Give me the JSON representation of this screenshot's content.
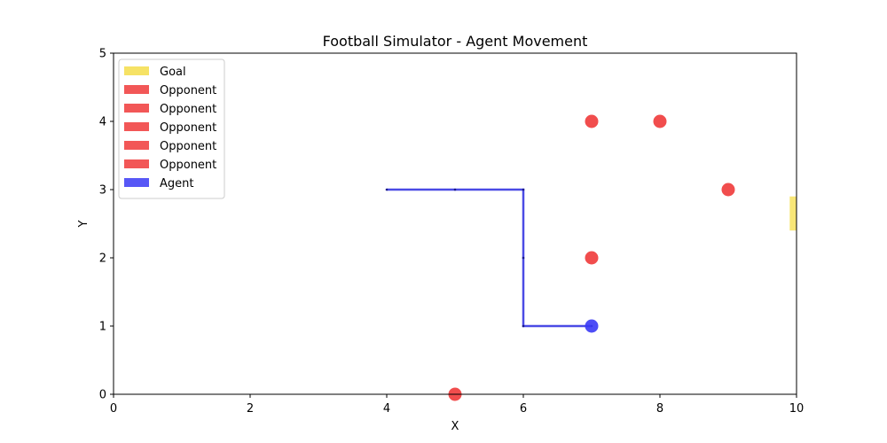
{
  "chart_data": {
    "type": "scatter",
    "title": "Football Simulator - Agent Movement",
    "xlabel": "X",
    "ylabel": "Y",
    "xlim": [
      0,
      10
    ],
    "ylim": [
      0,
      5
    ],
    "xticks": [
      0,
      2,
      4,
      6,
      8,
      10
    ],
    "yticks": [
      0,
      1,
      2,
      3,
      4,
      5
    ],
    "grid": false,
    "legend_position": "top-left",
    "legend": [
      {
        "label": "Goal",
        "color": "#f5dd4a"
      },
      {
        "label": "Opponent",
        "color": "#f03a3a"
      },
      {
        "label": "Opponent",
        "color": "#f03a3a"
      },
      {
        "label": "Opponent",
        "color": "#f03a3a"
      },
      {
        "label": "Opponent",
        "color": "#f03a3a"
      },
      {
        "label": "Opponent",
        "color": "#f03a3a"
      },
      {
        "label": "Agent",
        "color": "#3a3af5"
      }
    ],
    "goal": {
      "x": [
        9.9,
        10
      ],
      "y": [
        2.4,
        2.9
      ],
      "color": "#f5dd4a"
    },
    "opponents": [
      {
        "x": 7,
        "y": 4
      },
      {
        "x": 8,
        "y": 4
      },
      {
        "x": 9,
        "y": 3
      },
      {
        "x": 7,
        "y": 2
      },
      {
        "x": 5,
        "y": 0
      }
    ],
    "agent": {
      "x": 7,
      "y": 1
    },
    "agent_path": [
      {
        "x": 4,
        "y": 3
      },
      {
        "x": 5,
        "y": 3
      },
      {
        "x": 6,
        "y": 3
      },
      {
        "x": 6,
        "y": 2
      },
      {
        "x": 6,
        "y": 1
      },
      {
        "x": 7,
        "y": 1
      }
    ],
    "colors": {
      "opponent": "#f03a3a",
      "agent": "#3a3af5",
      "path": "#2b2be0",
      "goal": "#f5dd4a"
    }
  }
}
